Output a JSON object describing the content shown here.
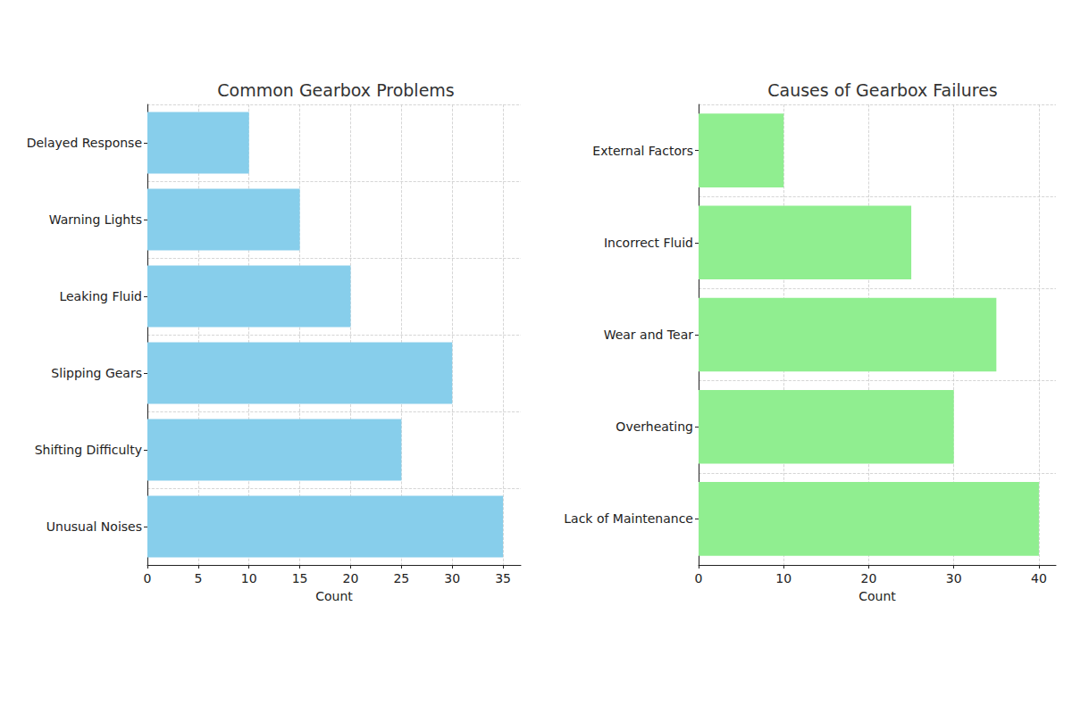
{
  "chart_data": [
    {
      "type": "bar",
      "orientation": "horizontal",
      "title": "Common Gearbox Problems",
      "categories": [
        "Unusual Noises",
        "Shifting Difficulty",
        "Slipping Gears",
        "Leaking Fluid",
        "Warning Lights",
        "Delayed Response"
      ],
      "values": [
        35,
        25,
        30,
        20,
        15,
        10
      ],
      "color": "#87ceeb",
      "xlabel": "Count",
      "xlim": [
        0,
        36.75
      ],
      "xticks": [
        0,
        5,
        10,
        15,
        20,
        25,
        30,
        35
      ],
      "grid": true
    },
    {
      "type": "bar",
      "orientation": "horizontal",
      "title": "Causes of Gearbox Failures",
      "categories": [
        "Lack of Maintenance",
        "Overheating",
        "Wear and Tear",
        "Incorrect Fluid",
        "External Factors"
      ],
      "values": [
        40,
        30,
        35,
        25,
        10
      ],
      "color": "#90ee90",
      "xlabel": "Count",
      "xlim": [
        0,
        42
      ],
      "xticks": [
        0,
        10,
        20,
        30,
        40
      ],
      "grid": true
    }
  ]
}
